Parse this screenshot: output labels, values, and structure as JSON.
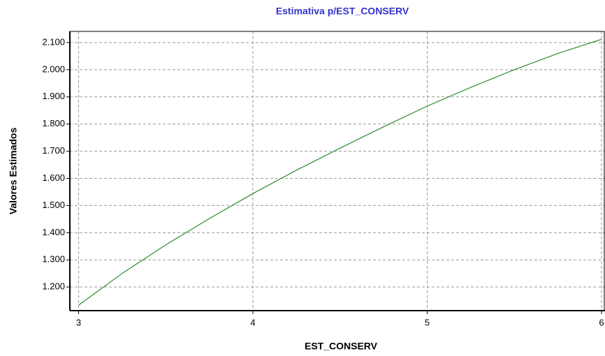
{
  "chart_data": {
    "type": "line",
    "title": "Estimativa p/EST_CONSERV",
    "x_label": "EST_CONSERV",
    "y_label": "Valores Estimados",
    "x": [
      3,
      3.25,
      3.5,
      3.75,
      4,
      4.25,
      4.5,
      4.75,
      5,
      5.25,
      5.5,
      5.75,
      6
    ],
    "series": [
      {
        "name": "EST_CONSERV",
        "color": "#2e8b2e",
        "values": [
          1133,
          1250,
          1355,
          1452,
          1544,
          1630,
          1711,
          1790,
          1866,
          1935,
          2000,
          2060,
          2112
        ]
      }
    ],
    "xlim": [
      2.95,
      6.02
    ],
    "xticks": [
      3,
      4,
      5,
      6
    ],
    "ylim": [
      1113,
      2141
    ],
    "yticks": [
      {
        "value": 1200,
        "label": "1.200"
      },
      {
        "value": 1300,
        "label": "1.300"
      },
      {
        "value": 1400,
        "label": "1.400"
      },
      {
        "value": 1500,
        "label": "1.500"
      },
      {
        "value": 1600,
        "label": "1.600"
      },
      {
        "value": 1700,
        "label": "1.700"
      },
      {
        "value": 1800,
        "label": "1.800"
      },
      {
        "value": 1900,
        "label": "1.900"
      },
      {
        "value": 2000,
        "label": "2.000"
      },
      {
        "value": 2100,
        "label": "2.100"
      }
    ],
    "grid": true
  }
}
